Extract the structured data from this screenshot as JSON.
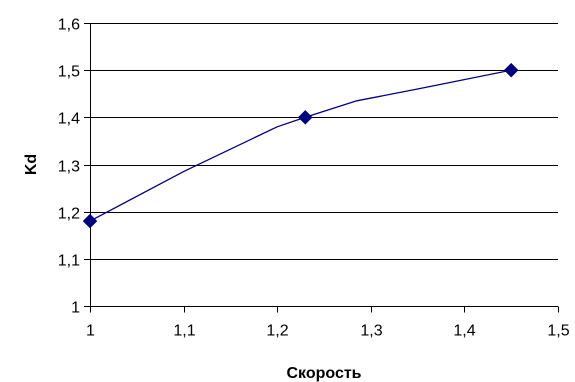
{
  "chart_data": {
    "type": "line",
    "title": "",
    "xlabel": "Скорость",
    "ylabel": "Kd",
    "xlim": [
      1,
      1.5
    ],
    "ylim": [
      1,
      1.6
    ],
    "x_ticks": [
      1,
      1.1,
      1.2,
      1.3,
      1.4,
      1.5
    ],
    "y_ticks": [
      1,
      1.1,
      1.2,
      1.3,
      1.4,
      1.5,
      1.6
    ],
    "x_tick_labels": [
      "1",
      "1,1",
      "1,2",
      "1,3",
      "1,4",
      "1,5"
    ],
    "y_tick_labels": [
      "1",
      "1,1",
      "1,2",
      "1,3",
      "1,4",
      "1,5",
      "1,6"
    ],
    "grid": "horizontal",
    "legend": "none",
    "series": [
      {
        "points": [
          {
            "x": 1.0,
            "y": 1.18
          },
          {
            "x": 1.23,
            "y": 1.4
          },
          {
            "x": 1.45,
            "y": 1.5
          }
        ],
        "curve": [
          {
            "x": 1.0,
            "y": 1.18
          },
          {
            "x": 1.1,
            "y": 1.285
          },
          {
            "x": 1.2,
            "y": 1.38
          },
          {
            "x": 1.23,
            "y": 1.4
          },
          {
            "x": 1.285,
            "y": 1.435
          },
          {
            "x": 1.35,
            "y": 1.46
          },
          {
            "x": 1.45,
            "y": 1.5
          }
        ],
        "color": "#000080",
        "marker": "diamond"
      }
    ],
    "colors": {
      "axis": "#000000",
      "grid": "#000000",
      "line": "#000080",
      "marker": "#000080"
    }
  }
}
